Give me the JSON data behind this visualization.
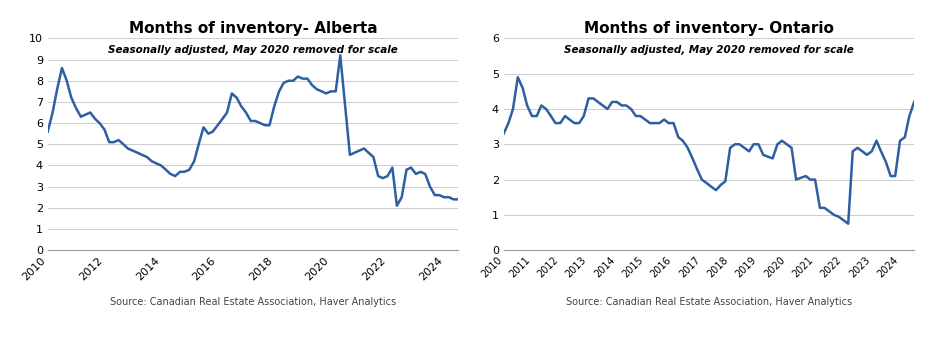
{
  "alberta_title": "Months of inventory- Alberta",
  "alberta_subtitle": "Seasonally adjusted, May 2020 removed for scale",
  "ontario_title": "Months of inventory- Ontario",
  "ontario_subtitle": "Seasonally adjusted, May 2020 removed for scale",
  "source_text": "Source: Canadian Real Estate Association, Haver Analytics",
  "line_color": "#2E5FA3",
  "line_width": 1.8,
  "bg_color": "#FFFFFF",
  "alberta_ylim": [
    0,
    10
  ],
  "alberta_yticks": [
    0,
    1,
    2,
    3,
    4,
    5,
    6,
    7,
    8,
    9,
    10
  ],
  "ontario_ylim": [
    0,
    6
  ],
  "ontario_yticks": [
    0,
    1,
    2,
    3,
    4,
    5,
    6
  ],
  "alberta_x": [
    2010.0,
    2010.17,
    2010.33,
    2010.5,
    2010.67,
    2010.83,
    2011.0,
    2011.17,
    2011.33,
    2011.5,
    2011.67,
    2011.83,
    2012.0,
    2012.17,
    2012.33,
    2012.5,
    2012.67,
    2012.83,
    2013.0,
    2013.17,
    2013.33,
    2013.5,
    2013.67,
    2013.83,
    2014.0,
    2014.17,
    2014.33,
    2014.5,
    2014.67,
    2014.83,
    2015.0,
    2015.17,
    2015.33,
    2015.5,
    2015.67,
    2015.83,
    2016.0,
    2016.17,
    2016.33,
    2016.5,
    2016.67,
    2016.83,
    2017.0,
    2017.17,
    2017.33,
    2017.5,
    2017.67,
    2017.83,
    2018.0,
    2018.17,
    2018.33,
    2018.5,
    2018.67,
    2018.83,
    2019.0,
    2019.17,
    2019.33,
    2019.5,
    2019.67,
    2019.83,
    2020.0,
    2020.17,
    2020.33,
    2020.67,
    2020.83,
    2021.0,
    2021.17,
    2021.33,
    2021.5,
    2021.67,
    2021.83,
    2022.0,
    2022.17,
    2022.33,
    2022.5,
    2022.67,
    2022.83,
    2023.0,
    2023.17,
    2023.33,
    2023.5,
    2023.67,
    2023.83,
    2024.0,
    2024.17,
    2024.33,
    2024.5
  ],
  "alberta_y": [
    5.6,
    6.5,
    7.6,
    8.6,
    8.0,
    7.2,
    6.7,
    6.3,
    6.4,
    6.5,
    6.2,
    6.0,
    5.7,
    5.1,
    5.1,
    5.2,
    5.0,
    4.8,
    4.7,
    4.6,
    4.5,
    4.4,
    4.2,
    4.1,
    4.0,
    3.8,
    3.6,
    3.5,
    3.7,
    3.7,
    3.8,
    4.2,
    5.0,
    5.8,
    5.5,
    5.6,
    5.9,
    6.2,
    6.5,
    7.4,
    7.2,
    6.8,
    6.5,
    6.1,
    6.1,
    6.0,
    5.9,
    5.9,
    6.8,
    7.5,
    7.9,
    8.0,
    8.0,
    8.2,
    8.1,
    8.1,
    7.8,
    7.6,
    7.5,
    7.4,
    7.5,
    7.5,
    9.2,
    4.5,
    4.6,
    4.7,
    4.8,
    4.6,
    4.4,
    3.5,
    3.4,
    3.5,
    3.9,
    2.1,
    2.5,
    3.8,
    3.9,
    3.6,
    3.7,
    3.6,
    3.0,
    2.6,
    2.6,
    2.5,
    2.5,
    2.4,
    2.4
  ],
  "ontario_x": [
    2010.0,
    2010.17,
    2010.33,
    2010.5,
    2010.67,
    2010.83,
    2011.0,
    2011.17,
    2011.33,
    2011.5,
    2011.67,
    2011.83,
    2012.0,
    2012.17,
    2012.33,
    2012.5,
    2012.67,
    2012.83,
    2013.0,
    2013.17,
    2013.33,
    2013.5,
    2013.67,
    2013.83,
    2014.0,
    2014.17,
    2014.33,
    2014.5,
    2014.67,
    2014.83,
    2015.0,
    2015.17,
    2015.33,
    2015.5,
    2015.67,
    2015.83,
    2016.0,
    2016.17,
    2016.33,
    2016.5,
    2016.67,
    2016.83,
    2017.0,
    2017.17,
    2017.33,
    2017.5,
    2017.67,
    2017.83,
    2018.0,
    2018.17,
    2018.33,
    2018.5,
    2018.67,
    2018.83,
    2019.0,
    2019.17,
    2019.33,
    2019.5,
    2019.67,
    2019.83,
    2020.0,
    2020.17,
    2020.33,
    2020.67,
    2020.83,
    2021.0,
    2021.17,
    2021.33,
    2021.5,
    2021.67,
    2021.83,
    2022.0,
    2022.17,
    2022.33,
    2022.5,
    2022.67,
    2022.83,
    2023.0,
    2023.17,
    2023.33,
    2023.5,
    2023.67,
    2023.83,
    2024.0,
    2024.17,
    2024.33,
    2024.5
  ],
  "ontario_y": [
    3.3,
    3.6,
    4.0,
    4.9,
    4.6,
    4.1,
    3.8,
    3.8,
    4.1,
    4.0,
    3.8,
    3.6,
    3.6,
    3.8,
    3.7,
    3.6,
    3.6,
    3.8,
    4.3,
    4.3,
    4.2,
    4.1,
    4.0,
    4.2,
    4.2,
    4.1,
    4.1,
    4.0,
    3.8,
    3.8,
    3.7,
    3.6,
    3.6,
    3.6,
    3.7,
    3.6,
    3.6,
    3.2,
    3.1,
    2.9,
    2.6,
    2.3,
    2.0,
    1.9,
    1.8,
    1.7,
    1.85,
    1.95,
    2.9,
    3.0,
    3.0,
    2.9,
    2.8,
    3.0,
    3.0,
    2.7,
    2.65,
    2.6,
    3.0,
    3.1,
    3.0,
    2.9,
    2.0,
    2.1,
    2.0,
    2.0,
    1.2,
    1.2,
    1.1,
    1.0,
    0.95,
    0.85,
    0.75,
    2.8,
    2.9,
    2.8,
    2.7,
    2.8,
    3.1,
    2.8,
    2.5,
    2.1,
    2.1,
    3.1,
    3.2,
    3.8,
    4.2
  ],
  "alberta_xticks": [
    2010,
    2012,
    2014,
    2016,
    2018,
    2020,
    2022,
    2024
  ],
  "ontario_xticks": [
    2010,
    2011,
    2012,
    2013,
    2014,
    2015,
    2016,
    2017,
    2018,
    2019,
    2020,
    2021,
    2022,
    2023,
    2024
  ]
}
